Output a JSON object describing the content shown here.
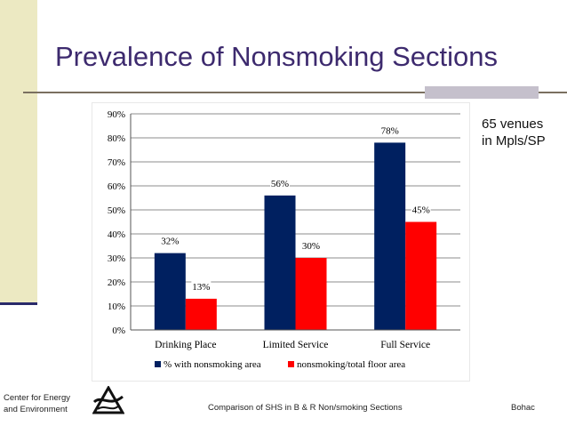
{
  "slide": {
    "title": "Prevalence of Nonsmoking Sections",
    "note_line1": "65 venues",
    "note_line2": "in Mpls/SP"
  },
  "footer": {
    "org_line1": "Center for Energy",
    "org_line2": "and Environment",
    "center_text": "Comparison of SHS in B & R Non/smoking Sections",
    "author": "Bohac"
  },
  "colors": {
    "series1": "#002060",
    "series2": "#ff0000",
    "title": "#3d2a6e"
  },
  "chart_data": {
    "type": "bar",
    "title": "",
    "xlabel": "",
    "ylabel": "",
    "categories": [
      "Drinking Place",
      "Limited Service",
      "Full Service"
    ],
    "series": [
      {
        "name": "% with nonsmoking area",
        "values": [
          32,
          56,
          78
        ],
        "labels": [
          "32%",
          "56%",
          "78%"
        ],
        "color": "#002060"
      },
      {
        "name": "nonsmoking/total floor area",
        "values": [
          13,
          30,
          45
        ],
        "labels": [
          "13%",
          "30%",
          "45%"
        ],
        "color": "#ff0000"
      }
    ],
    "ylim": [
      0,
      90
    ],
    "yticks": [
      0,
      10,
      20,
      30,
      40,
      50,
      60,
      70,
      80,
      90
    ],
    "ytick_labels": [
      "0%",
      "10%",
      "20%",
      "30%",
      "40%",
      "50%",
      "60%",
      "70%",
      "80%",
      "90%"
    ],
    "grid": true,
    "legend": "bottom"
  }
}
